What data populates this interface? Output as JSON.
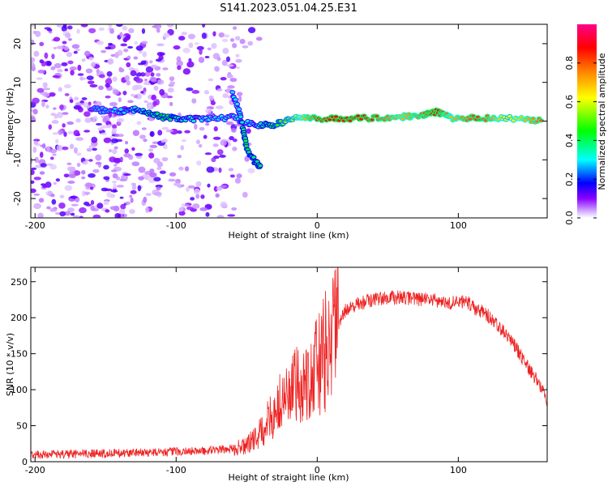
{
  "title": "S141.2023.051.04.25.E31",
  "colors": {
    "snr_line": "#ee2222",
    "frame": "#000000"
  },
  "chart_data": [
    {
      "type": "heatmap",
      "xlabel": "Height of straight line (km)",
      "ylabel": "Frequency (Hz)",
      "xlim": [
        -203,
        163
      ],
      "ylim": [
        -25,
        25
      ],
      "xticks": [
        -200,
        -100,
        0,
        100
      ],
      "yticks": [
        -20,
        -10,
        0,
        10,
        20
      ],
      "colorbar": {
        "label": "Normalized spectral amplitude",
        "range": [
          0,
          1
        ],
        "ticks": [
          "0.0",
          "0.2",
          "0.4",
          "0.6",
          "0.8"
        ],
        "tick_values": [
          0.0,
          0.2,
          0.4,
          0.6,
          0.8
        ]
      },
      "ridge": [
        {
          "x": -160,
          "y": 3,
          "a": 0.25
        },
        {
          "x": -140,
          "y": 2.5,
          "a": 0.3
        },
        {
          "x": -125,
          "y": 3,
          "a": 0.35
        },
        {
          "x": -110,
          "y": 1,
          "a": 0.45
        },
        {
          "x": -95,
          "y": 0.5,
          "a": 0.35
        },
        {
          "x": -80,
          "y": 0.5,
          "a": 0.3
        },
        {
          "x": -60,
          "y": 1,
          "a": 0.3
        },
        {
          "x": -45,
          "y": -1,
          "a": 0.3
        },
        {
          "x": -30,
          "y": -1,
          "a": 0.45
        },
        {
          "x": -15,
          "y": 1,
          "a": 0.6
        },
        {
          "x": 0,
          "y": 0.6,
          "a": 0.85
        },
        {
          "x": 20,
          "y": 0.7,
          "a": 0.9
        },
        {
          "x": 40,
          "y": 0.8,
          "a": 0.85
        },
        {
          "x": 60,
          "y": 1.1,
          "a": 0.7
        },
        {
          "x": 75,
          "y": 1.6,
          "a": 0.8
        },
        {
          "x": 85,
          "y": 2.4,
          "a": 0.9
        },
        {
          "x": 95,
          "y": 0.8,
          "a": 0.7
        },
        {
          "x": 115,
          "y": 0.8,
          "a": 0.85
        },
        {
          "x": 135,
          "y": 0.8,
          "a": 0.6
        },
        {
          "x": 160,
          "y": 0,
          "a": 0.8
        }
      ],
      "branch": [
        {
          "x": -60,
          "y": 7,
          "a": 0.3
        },
        {
          "x": -55,
          "y": 2,
          "a": 0.3
        },
        {
          "x": -52,
          "y": -3,
          "a": 0.4
        },
        {
          "x": -50,
          "y": -7,
          "a": 0.45
        },
        {
          "x": -45,
          "y": -10,
          "a": 0.4
        },
        {
          "x": -40,
          "y": -12,
          "a": 0.4
        }
      ]
    },
    {
      "type": "line",
      "xlabel": "Height of straight line (km)",
      "ylabel": "SNR (10 * v/v)",
      "xlim": [
        -203,
        163
      ],
      "ylim": [
        0,
        270
      ],
      "xticks": [
        -200,
        -100,
        0,
        100
      ],
      "yticks": [
        0,
        50,
        100,
        150,
        200,
        250
      ],
      "series": [
        {
          "x": [
            -203,
            -180,
            -160,
            -140,
            -120,
            -100,
            -80,
            -60,
            -50,
            -40,
            -30,
            -20,
            -10,
            0,
            10,
            20,
            30,
            40,
            50,
            60,
            70,
            80,
            90,
            100,
            105,
            110,
            120,
            130,
            140,
            150,
            160,
            163
          ],
          "values": [
            10,
            10,
            11,
            12,
            13,
            14,
            15,
            18,
            22,
            40,
            70,
            95,
            110,
            130,
            170,
            210,
            220,
            225,
            228,
            228,
            226,
            225,
            222,
            220,
            225,
            215,
            205,
            185,
            160,
            130,
            100,
            85
          ]
        }
      ]
    }
  ]
}
